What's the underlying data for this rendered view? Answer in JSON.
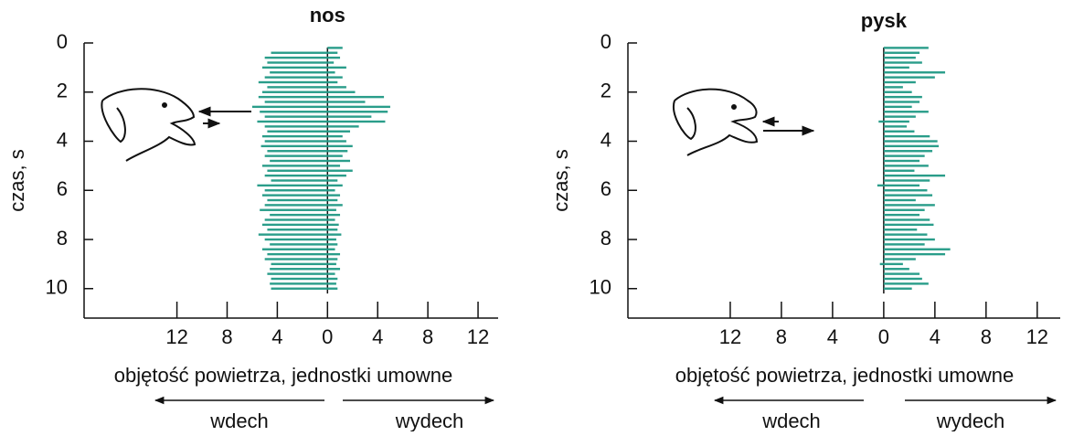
{
  "chart_data": [
    {
      "type": "bar",
      "orientation": "horizontal",
      "title": "nos",
      "xlabel": "objętość powietrza, jednostki umowne",
      "ylabel": "czas, s",
      "y": [
        0.2,
        0.4,
        0.6,
        0.8,
        1.0,
        1.2,
        1.4,
        1.6,
        1.8,
        2.0,
        2.2,
        2.4,
        2.6,
        2.8,
        3.0,
        3.2,
        3.4,
        3.6,
        3.8,
        4.0,
        4.2,
        4.4,
        4.6,
        4.8,
        5.0,
        5.2,
        5.4,
        5.6,
        5.8,
        6.0,
        6.2,
        6.4,
        6.6,
        6.8,
        7.0,
        7.2,
        7.4,
        7.6,
        7.8,
        8.0,
        8.2,
        8.4,
        8.6,
        8.8,
        9.0,
        9.2,
        9.4,
        9.6,
        9.8,
        10.0
      ],
      "series": [
        {
          "name": "wdech",
          "color": "#2a9d8a",
          "values": [
            null,
            -4.5,
            -5,
            -4.8,
            -5.2,
            -4.6,
            -5,
            -5.5,
            -4.8,
            -5.2,
            -5.5,
            -5,
            -6,
            -5.4,
            -5,
            -5.6,
            -5,
            -4.8,
            -5.2,
            -5,
            -5.3,
            -4.8,
            -5,
            -4.6,
            -5.2,
            -4.8,
            -5,
            -4.5,
            -5.6,
            -5,
            -5.2,
            -4.8,
            -5,
            -5.4,
            -4.6,
            -5,
            -5.2,
            -4.8,
            -5.5,
            -5,
            -4.6,
            -5.2,
            -4.8,
            -5,
            -4.5,
            -4.6,
            -4.8,
            -4.5,
            -4.6,
            -4.5
          ]
        },
        {
          "name": "wydech",
          "color": "#2a9d8a",
          "values": [
            1.2,
            0.8,
            1,
            0.5,
            1.5,
            0.6,
            1.2,
            0.8,
            1.5,
            2.2,
            4.5,
            3,
            5,
            4.8,
            3.5,
            4.6,
            2.5,
            1.8,
            1.2,
            1.5,
            2,
            1.6,
            1.2,
            1.8,
            1,
            2,
            1.5,
            0.8,
            1.2,
            0.6,
            1,
            0.8,
            1.2,
            0.7,
            1,
            0.6,
            0.9,
            0.8,
            1.1,
            0.7,
            0.8,
            0.6,
            1,
            0.8,
            0.7,
            1,
            0.6,
            0.8,
            0.7,
            0.8
          ]
        }
      ],
      "xlim": [
        -19.4,
        13.6
      ],
      "ylim": [
        0,
        11.2
      ],
      "xticks": [
        {
          "value": -12,
          "label": "12"
        },
        {
          "value": -8,
          "label": "8"
        },
        {
          "value": -4,
          "label": "4"
        },
        0,
        4,
        8,
        12
      ],
      "yticks": [
        0,
        2,
        4,
        6,
        8,
        10
      ]
    },
    {
      "type": "bar",
      "orientation": "horizontal",
      "title": "pysk",
      "xlabel": "objętość powietrza, jednostki umowne",
      "ylabel": "czas, s",
      "y": [
        0.2,
        0.4,
        0.6,
        0.8,
        1.0,
        1.2,
        1.4,
        1.6,
        1.8,
        2.0,
        2.2,
        2.4,
        2.6,
        2.8,
        3.0,
        3.2,
        3.4,
        3.6,
        3.8,
        4.0,
        4.2,
        4.4,
        4.6,
        4.8,
        5.0,
        5.2,
        5.4,
        5.6,
        5.8,
        6.0,
        6.2,
        6.4,
        6.6,
        6.8,
        7.0,
        7.2,
        7.4,
        7.6,
        7.8,
        8.0,
        8.2,
        8.4,
        8.6,
        8.8,
        9.0,
        9.2,
        9.4,
        9.6,
        9.8,
        10.0
      ],
      "series": [
        {
          "name": "wdech",
          "color": "#2a9d8a",
          "values": [
            null,
            null,
            null,
            null,
            null,
            null,
            null,
            null,
            null,
            null,
            null,
            null,
            null,
            null,
            null,
            -0.4,
            null,
            null,
            null,
            null,
            null,
            null,
            null,
            null,
            null,
            null,
            null,
            null,
            -0.5,
            null,
            null,
            null,
            null,
            null,
            null,
            null,
            null,
            null,
            null,
            null,
            null,
            null,
            null,
            null,
            -0.3,
            null,
            null,
            null,
            null,
            null
          ]
        },
        {
          "name": "wydech",
          "color": "#2a9d8a",
          "values": [
            3.5,
            2.8,
            2.5,
            3,
            2,
            4.8,
            4,
            2.5,
            1.5,
            2.2,
            3,
            2.8,
            2.2,
            3.5,
            2.5,
            2,
            1.8,
            2.4,
            3.6,
            4.2,
            4.3,
            3.8,
            3.2,
            2.8,
            3.5,
            2.4,
            4.8,
            3.6,
            2.8,
            3.4,
            3.8,
            2.5,
            4,
            3.2,
            2.8,
            3.6,
            3.9,
            2.6,
            3.4,
            4,
            3.2,
            5.2,
            4.8,
            2.5,
            1.5,
            2,
            2.8,
            3,
            3.5,
            2.2
          ]
        }
      ],
      "xlim": [
        -20,
        13.8
      ],
      "ylim": [
        0,
        11.2
      ],
      "xticks": [
        {
          "value": -12,
          "label": "12"
        },
        {
          "value": -8,
          "label": "8"
        },
        {
          "value": -4,
          "label": "4"
        },
        0,
        4,
        8,
        12
      ],
      "yticks": [
        0,
        2,
        4,
        6,
        8,
        10
      ]
    }
  ]
}
